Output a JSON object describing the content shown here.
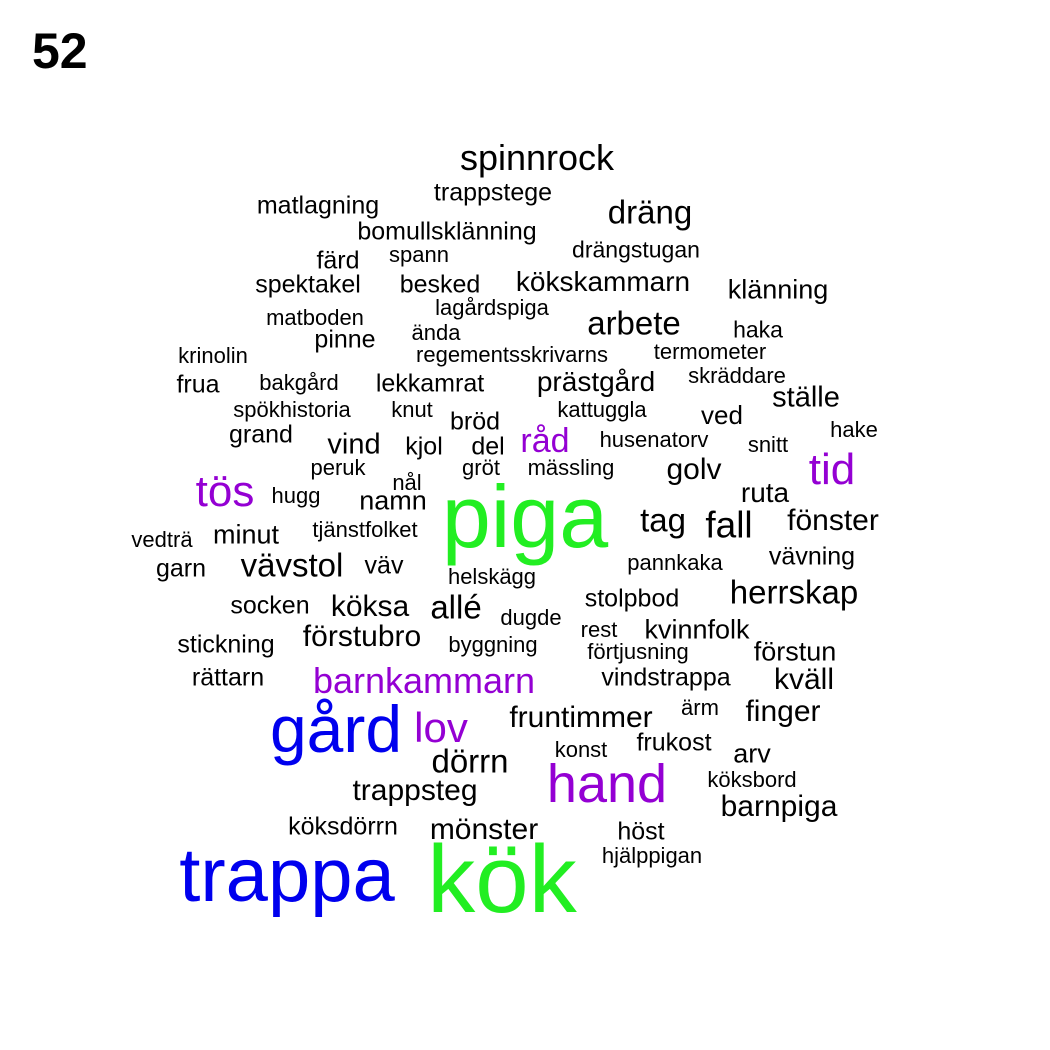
{
  "page_number": "52",
  "colors": {
    "tier_1": "#22ee22",
    "tier_2": "#0000ee",
    "tier_3": "#9400d3",
    "tier_4": "#000000"
  },
  "words": [
    {
      "text": "kök",
      "tier": 1
    },
    {
      "text": "piga",
      "tier": 1
    },
    {
      "text": "trappa",
      "tier": 2
    },
    {
      "text": "gård",
      "tier": 2
    },
    {
      "text": "hand",
      "tier": 3
    },
    {
      "text": "lov",
      "tier": 3
    },
    {
      "text": "tös",
      "tier": 3
    },
    {
      "text": "tid",
      "tier": 3
    },
    {
      "text": "barnkammarn",
      "tier": 3
    },
    {
      "text": "råd",
      "tier": 3
    },
    {
      "text": "spinnrock",
      "tier": 4
    },
    {
      "text": "trappstege",
      "tier": 4
    },
    {
      "text": "matlagning",
      "tier": 4
    },
    {
      "text": "dräng",
      "tier": 4
    },
    {
      "text": "bomullsklänning",
      "tier": 4
    },
    {
      "text": "drängstugan",
      "tier": 4
    },
    {
      "text": "färd",
      "tier": 4
    },
    {
      "text": "spann",
      "tier": 4
    },
    {
      "text": "spektakel",
      "tier": 4
    },
    {
      "text": "besked",
      "tier": 4
    },
    {
      "text": "kökskammarn",
      "tier": 4
    },
    {
      "text": "klänning",
      "tier": 4
    },
    {
      "text": "lagårdspiga",
      "tier": 4
    },
    {
      "text": "matboden",
      "tier": 4
    },
    {
      "text": "arbete",
      "tier": 4
    },
    {
      "text": "haka",
      "tier": 4
    },
    {
      "text": "pinne",
      "tier": 4
    },
    {
      "text": "ända",
      "tier": 4
    },
    {
      "text": "krinolin",
      "tier": 4
    },
    {
      "text": "regementsskrivarns",
      "tier": 4
    },
    {
      "text": "termometer",
      "tier": 4
    },
    {
      "text": "frua",
      "tier": 4
    },
    {
      "text": "bakgård",
      "tier": 4
    },
    {
      "text": "lekkamrat",
      "tier": 4
    },
    {
      "text": "prästgård",
      "tier": 4
    },
    {
      "text": "skräddare",
      "tier": 4
    },
    {
      "text": "ställe",
      "tier": 4
    },
    {
      "text": "spökhistoria",
      "tier": 4
    },
    {
      "text": "knut",
      "tier": 4
    },
    {
      "text": "kattuggla",
      "tier": 4
    },
    {
      "text": "ved",
      "tier": 4
    },
    {
      "text": "bröd",
      "tier": 4
    },
    {
      "text": "grand",
      "tier": 4
    },
    {
      "text": "hake",
      "tier": 4
    },
    {
      "text": "vind",
      "tier": 4
    },
    {
      "text": "kjol",
      "tier": 4
    },
    {
      "text": "del",
      "tier": 4
    },
    {
      "text": "husenatorv",
      "tier": 4
    },
    {
      "text": "snitt",
      "tier": 4
    },
    {
      "text": "peruk",
      "tier": 4
    },
    {
      "text": "gröt",
      "tier": 4
    },
    {
      "text": "mässling",
      "tier": 4
    },
    {
      "text": "golv",
      "tier": 4
    },
    {
      "text": "nål",
      "tier": 4
    },
    {
      "text": "hugg",
      "tier": 4
    },
    {
      "text": "namn",
      "tier": 4
    },
    {
      "text": "ruta",
      "tier": 4
    },
    {
      "text": "tag",
      "tier": 4
    },
    {
      "text": "fall",
      "tier": 4
    },
    {
      "text": "fönster",
      "tier": 4
    },
    {
      "text": "vedträ",
      "tier": 4
    },
    {
      "text": "minut",
      "tier": 4
    },
    {
      "text": "tjänstfolket",
      "tier": 4
    },
    {
      "text": "pannkaka",
      "tier": 4
    },
    {
      "text": "vävning",
      "tier": 4
    },
    {
      "text": "garn",
      "tier": 4
    },
    {
      "text": "vävstol",
      "tier": 4
    },
    {
      "text": "väv",
      "tier": 4
    },
    {
      "text": "helskägg",
      "tier": 4
    },
    {
      "text": "herrskap",
      "tier": 4
    },
    {
      "text": "socken",
      "tier": 4
    },
    {
      "text": "köksa",
      "tier": 4
    },
    {
      "text": "allé",
      "tier": 4
    },
    {
      "text": "dugde",
      "tier": 4
    },
    {
      "text": "stolpbod",
      "tier": 4
    },
    {
      "text": "förstubro",
      "tier": 4
    },
    {
      "text": "rest",
      "tier": 4
    },
    {
      "text": "kvinnfolk",
      "tier": 4
    },
    {
      "text": "stickning",
      "tier": 4
    },
    {
      "text": "byggning",
      "tier": 4
    },
    {
      "text": "förtjusning",
      "tier": 4
    },
    {
      "text": "förstun",
      "tier": 4
    },
    {
      "text": "rättarn",
      "tier": 4
    },
    {
      "text": "vindstrappa",
      "tier": 4
    },
    {
      "text": "kväll",
      "tier": 4
    },
    {
      "text": "fruntimmer",
      "tier": 4
    },
    {
      "text": "ärm",
      "tier": 4
    },
    {
      "text": "finger",
      "tier": 4
    },
    {
      "text": "frukost",
      "tier": 4
    },
    {
      "text": "konst",
      "tier": 4
    },
    {
      "text": "arv",
      "tier": 4
    },
    {
      "text": "dörrn",
      "tier": 4
    },
    {
      "text": "köksbord",
      "tier": 4
    },
    {
      "text": "trappsteg",
      "tier": 4
    },
    {
      "text": "barnpiga",
      "tier": 4
    },
    {
      "text": "köksdörrn",
      "tier": 4
    },
    {
      "text": "mönster",
      "tier": 4
    },
    {
      "text": "höst",
      "tier": 4
    },
    {
      "text": "hjälppigan",
      "tier": 4
    }
  ]
}
